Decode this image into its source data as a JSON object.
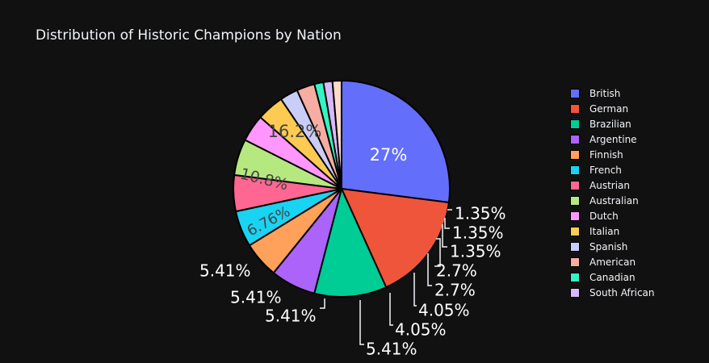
{
  "chart_data": {
    "type": "pie",
    "title": "Distribution of Historic Champions by Nation",
    "legend_position": "right",
    "slices": [
      {
        "label": "British",
        "value": 27.03,
        "text": "27%",
        "color": "#636efa",
        "text_color": "#ffffff"
      },
      {
        "label": "German",
        "value": 16.22,
        "text": "16.2%",
        "color": "#ef553b",
        "text_color": "#444444"
      },
      {
        "label": "Brazilian",
        "value": 10.81,
        "text": "10.8%",
        "color": "#00cc96",
        "text_color": "#444444"
      },
      {
        "label": "Argentine",
        "value": 6.76,
        "text": "6.76%",
        "color": "#ab63fa",
        "text_color": "#444444"
      },
      {
        "label": "Finnish",
        "value": 5.41,
        "text": "5.41%",
        "color": "#ffa15a",
        "text_color": "#ffffff"
      },
      {
        "label": "French",
        "value": 5.41,
        "text": "5.41%",
        "color": "#19d3f3",
        "text_color": "#ffffff"
      },
      {
        "label": "Austrian",
        "value": 5.41,
        "text": "5.41%",
        "color": "#ff6692",
        "text_color": "#ffffff"
      },
      {
        "label": "Australian",
        "value": 5.41,
        "text": "5.41%",
        "color": "#b6e880",
        "text_color": "#ffffff"
      },
      {
        "label": "Dutch",
        "value": 4.05,
        "text": "4.05%",
        "color": "#ff97ff",
        "text_color": "#ffffff"
      },
      {
        "label": "Italian",
        "value": 4.05,
        "text": "4.05%",
        "color": "#fecb52",
        "text_color": "#ffffff"
      },
      {
        "label": "Spanish",
        "value": 2.7,
        "text": "2.7%",
        "color": "#c9cdf7",
        "text_color": "#ffffff"
      },
      {
        "label": "American",
        "value": 2.7,
        "text": "2.7%",
        "color": "#f7ada1",
        "text_color": "#ffffff"
      },
      {
        "label": "Canadian",
        "value": 1.35,
        "text": "1.35%",
        "color": "#33f5c2",
        "text_color": "#ffffff"
      },
      {
        "label": "South African",
        "value": 1.35,
        "text": "1.35%",
        "color": "#d9b9fc",
        "text_color": "#ffffff"
      },
      {
        "label": "",
        "value": 1.35,
        "text": "1.35%",
        "color": "#ffdbc9",
        "text_color": "#ffffff"
      }
    ]
  }
}
